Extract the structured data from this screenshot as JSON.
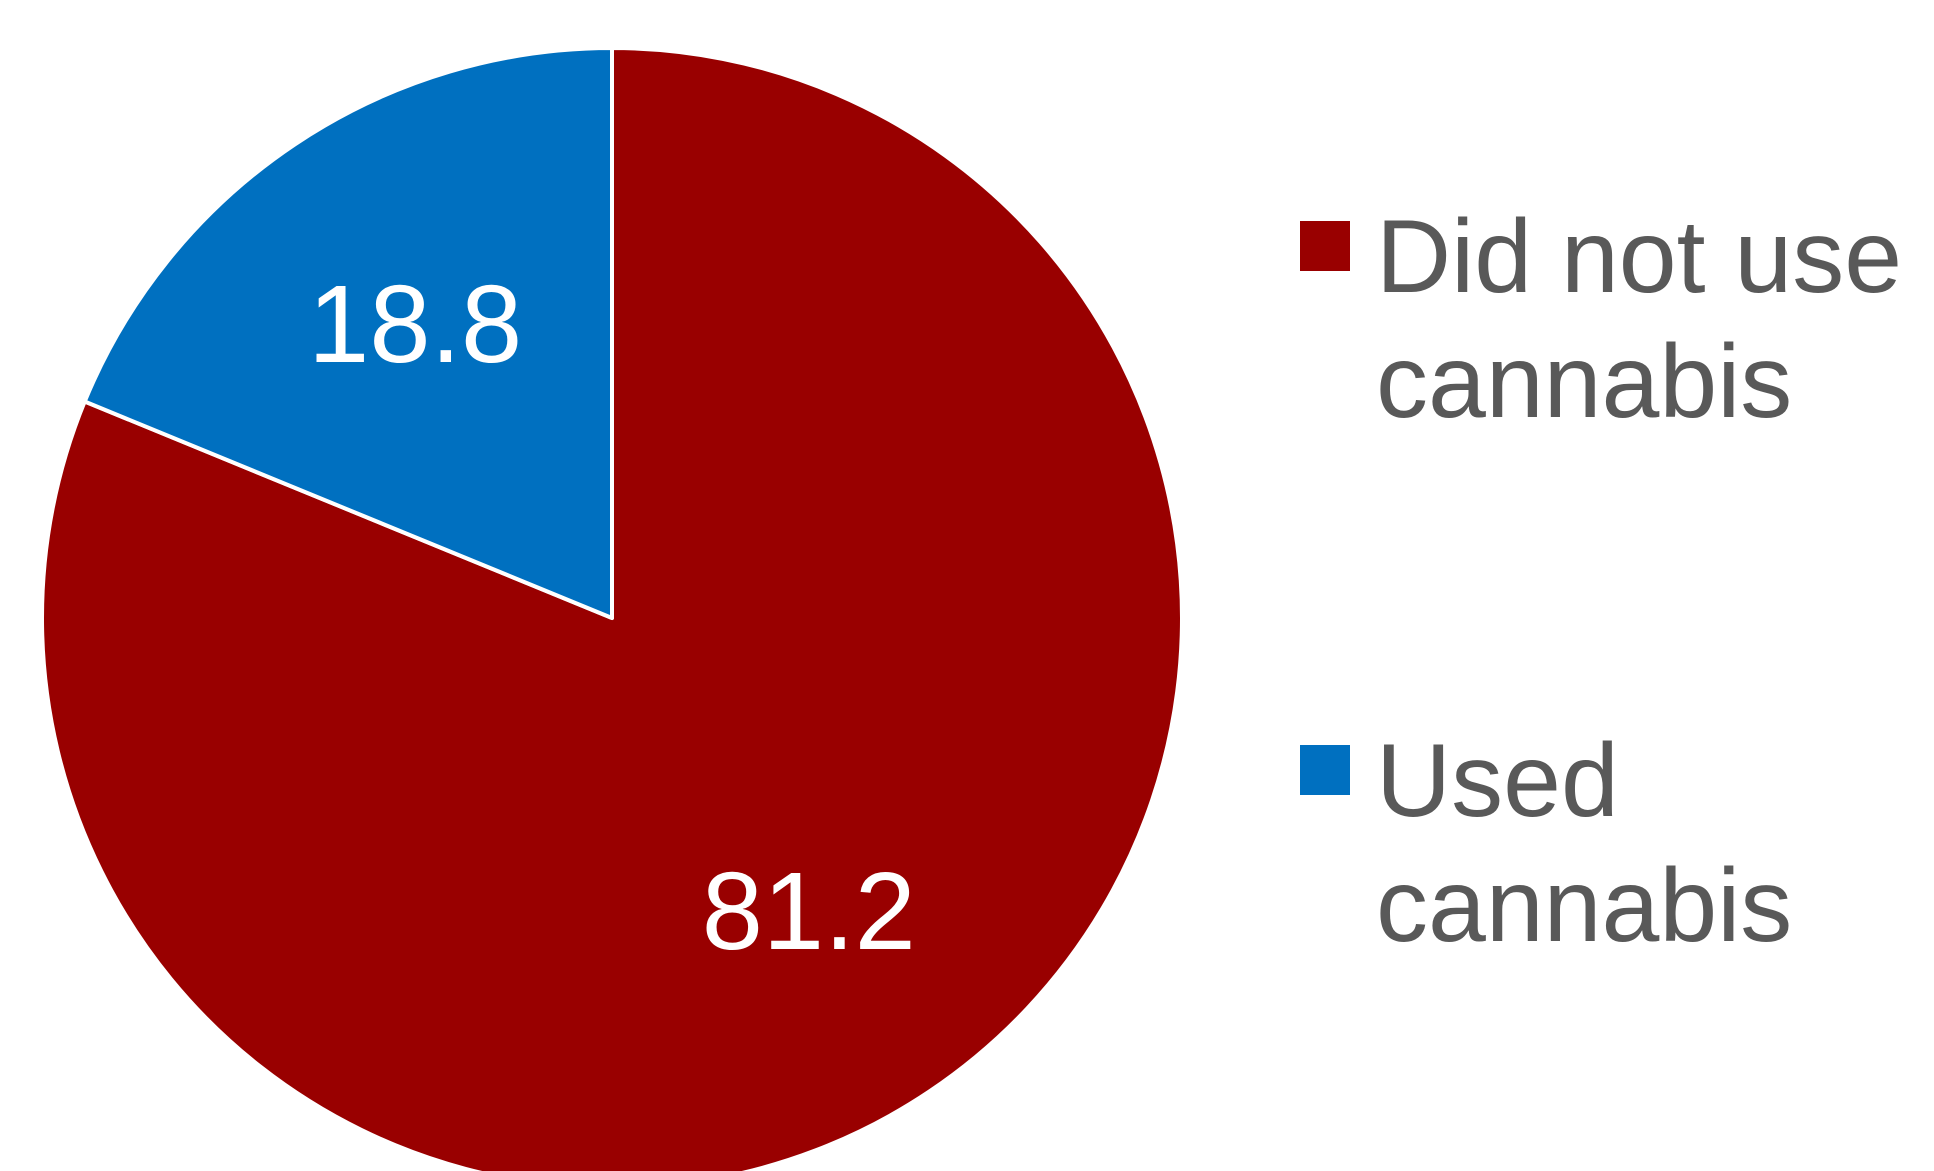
{
  "chart_data": {
    "type": "pie",
    "title": "",
    "slices": [
      {
        "label": "Did not use cannabis",
        "value": 81.2,
        "color": "#990000"
      },
      {
        "label": "Used cannabis",
        "value": 18.8,
        "color": "#0070C0"
      }
    ],
    "start_angle": "12 o'clock",
    "direction": "clockwise",
    "data_labels": "inside",
    "legend": {
      "position": "right",
      "items": [
        {
          "label": "Did not use cannabis",
          "color": "#990000"
        },
        {
          "label": "Used cannabis",
          "color": "#0070C0"
        }
      ]
    }
  }
}
